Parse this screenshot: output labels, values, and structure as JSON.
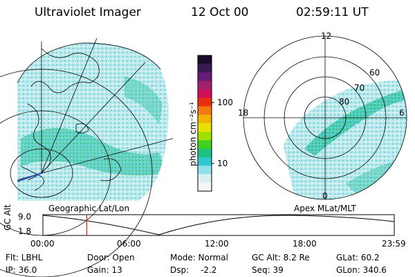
{
  "header": {
    "instrument": "Ultraviolet Imager",
    "date": "12 Oct 00",
    "time": "02:59:11 UT"
  },
  "colorbar": {
    "unit": "photon cm⁻²s⁻¹",
    "ticks": [
      "100",
      "10"
    ],
    "colors": [
      "#1b0a2a",
      "#3a1a55",
      "#661a7a",
      "#a0206e",
      "#d0105a",
      "#e83010",
      "#f07a10",
      "#f0b400",
      "#e8e000",
      "#a0e000",
      "#40d020",
      "#20c080",
      "#30c8d0",
      "#90e0e8",
      "#d8f0f0",
      "#f4f8f8"
    ]
  },
  "left_map": {
    "caption": "Geographic Lat/Lon"
  },
  "right_map": {
    "caption": "Apex MLat/MLT",
    "mlt_labels": {
      "top": "12",
      "left": "18",
      "right": "6",
      "bottom": "0"
    },
    "lat_labels": [
      "60",
      "70",
      "80"
    ]
  },
  "timeline": {
    "ylabel": "GC Alt",
    "yticks": [
      "9.0",
      "1.8"
    ],
    "xticks": [
      "00:00",
      "06:00",
      "12:00",
      "18:00",
      "23:59"
    ],
    "marker_fraction": 0.125
  },
  "info": {
    "flt": "Flt: LBHL",
    "door": "Door: Open",
    "mode": "Mode: Normal",
    "gcalt": "GC Alt: 8.2 Re",
    "glat": "GLat: 60.2",
    "ip": "IP: 36.0",
    "gain": "Gain: 13",
    "dsp_label": "Dsp:",
    "dsp_value": "-2.2",
    "seq": "Seq: 39",
    "glon": "GLon: 340.6"
  }
}
